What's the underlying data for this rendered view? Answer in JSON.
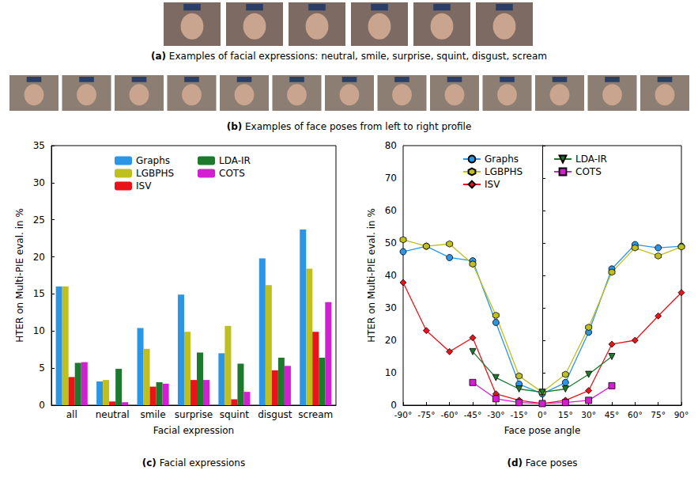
{
  "figure": {
    "a": {
      "label": "(a)",
      "caption": "Examples of facial expressions: neutral, smile, surprise, squint, disgust, scream"
    },
    "b": {
      "label": "(b)",
      "caption": "Examples of face poses from left to right profile"
    }
  },
  "chart_data": [
    {
      "type": "bar",
      "label": "(c)",
      "caption": "Facial expressions",
      "x_label": "Facial expression",
      "y_label": "HTER on Multi-PIE eval. in %",
      "categories": [
        "all",
        "neutral",
        "smile",
        "surprise",
        "squint",
        "disgust",
        "scream"
      ],
      "series": [
        {
          "name": "Graphs",
          "color": "#2b95e6",
          "values": [
            16.0,
            3.2,
            10.4,
            14.9,
            7.0,
            19.8,
            23.7
          ]
        },
        {
          "name": "LGBPHS",
          "color": "#bfbf1f",
          "values": [
            16.0,
            3.4,
            7.6,
            9.9,
            10.7,
            16.2,
            18.4
          ]
        },
        {
          "name": "ISV",
          "color": "#e8141a",
          "values": [
            3.8,
            0.5,
            2.5,
            3.4,
            0.8,
            4.7,
            9.9
          ]
        },
        {
          "name": "LDA-IR",
          "color": "#1b7a2b",
          "values": [
            5.7,
            4.9,
            3.1,
            7.1,
            5.6,
            6.4,
            6.4
          ]
        },
        {
          "name": "COTS",
          "color": "#d21fd2",
          "values": [
            5.8,
            0.4,
            2.9,
            3.4,
            1.8,
            5.3,
            13.9
          ]
        }
      ],
      "ylim": [
        0,
        35
      ],
      "yticks": [
        0,
        5,
        10,
        15,
        20,
        25,
        30,
        35
      ],
      "grid": false,
      "legend": "top"
    },
    {
      "type": "line",
      "label": "(d)",
      "caption": "Face poses",
      "x_label": "Face pose angle",
      "y_label": "HTER on Multi-PIE eval. in %",
      "x": [
        -90,
        -75,
        -60,
        -45,
        -30,
        -15,
        0,
        15,
        30,
        45,
        60,
        75,
        90
      ],
      "xlim": [
        -90,
        90
      ],
      "xticks": [
        {
          "value": -90,
          "label": "-90°"
        },
        {
          "value": -75,
          "label": "-75°"
        },
        {
          "value": -60,
          "label": "-60°"
        },
        {
          "value": -45,
          "label": "-45°"
        },
        {
          "value": -30,
          "label": "-30°"
        },
        {
          "value": -15,
          "label": "-15°"
        },
        {
          "value": 0,
          "label": "0°"
        },
        {
          "value": 15,
          "label": "15°"
        },
        {
          "value": 30,
          "label": "30°"
        },
        {
          "value": 45,
          "label": "45°"
        },
        {
          "value": 60,
          "label": "60°"
        },
        {
          "value": 75,
          "label": "75°"
        },
        {
          "value": 90,
          "label": "90°"
        }
      ],
      "ylim": [
        0,
        80
      ],
      "yticks": [
        0,
        10,
        20,
        30,
        40,
        50,
        60,
        70,
        80
      ],
      "series": [
        {
          "name": "Graphs",
          "color": "#2b95e6",
          "marker": "circle",
          "values": [
            47.3,
            49.0,
            45.5,
            44.5,
            25.5,
            6.5,
            3.5,
            7.0,
            22.5,
            42.0,
            49.5,
            48.5,
            49.0
          ]
        },
        {
          "name": "LGBPHS",
          "color": "#bfbf1f",
          "marker": "hexagon",
          "values": [
            51.0,
            49.0,
            49.7,
            43.5,
            27.7,
            9.0,
            4.0,
            9.5,
            24.0,
            41.0,
            48.5,
            46.0,
            48.8
          ]
        },
        {
          "name": "ISV",
          "color": "#e8141a",
          "marker": "diamond",
          "values": [
            37.8,
            23.0,
            16.5,
            20.8,
            3.5,
            1.5,
            0.5,
            1.5,
            4.5,
            18.8,
            20.0,
            27.5,
            34.7
          ]
        },
        {
          "name": "LDA-IR",
          "color": "#1b7a2b",
          "marker": "triangle_down",
          "values": [
            null,
            null,
            null,
            16.5,
            8.5,
            5.0,
            4.0,
            5.0,
            9.5,
            15.0,
            null,
            null,
            null
          ]
        },
        {
          "name": "COTS",
          "color": "#d21fd2",
          "marker": "square",
          "values": [
            null,
            null,
            null,
            7.0,
            2.0,
            0.8,
            0.5,
            0.8,
            1.5,
            6.0,
            null,
            null,
            null
          ]
        }
      ],
      "grid": false,
      "legend": "top"
    }
  ]
}
